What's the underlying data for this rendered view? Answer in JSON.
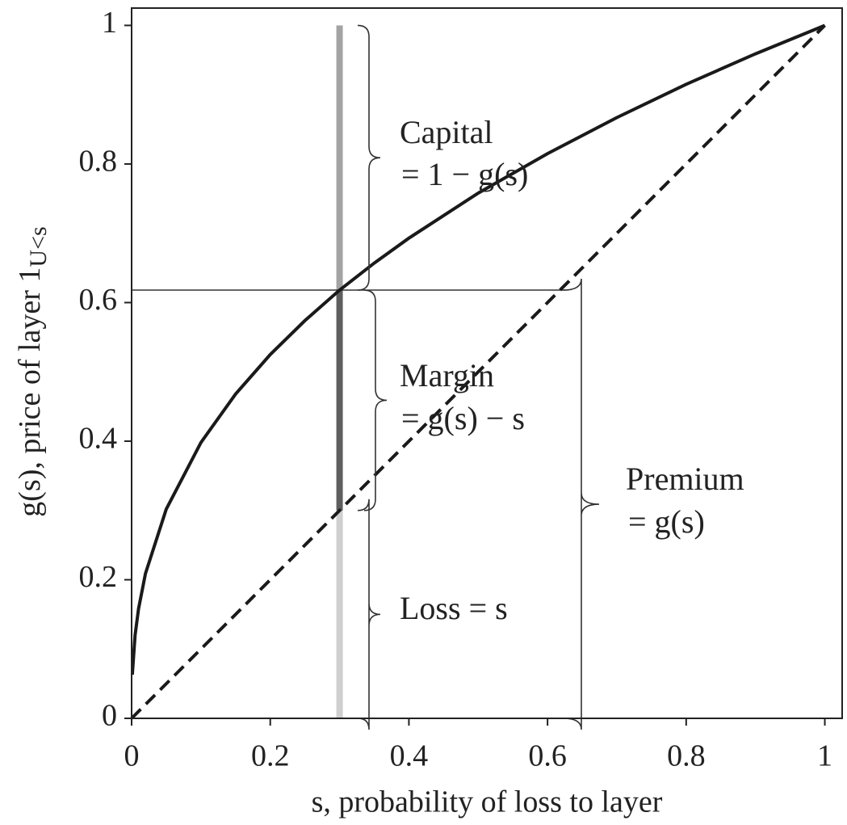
{
  "chart_data": {
    "type": "line",
    "xlabel": "s, probability of loss to layer",
    "ylabel": "g(s), price of layer 1",
    "ylabel_subscript": "U<s",
    "xlim": [
      0,
      1.025
    ],
    "ylim": [
      0,
      1.025
    ],
    "xticks": [
      0,
      0.2,
      0.4,
      0.6,
      0.8,
      1
    ],
    "yticks": [
      0,
      0.2,
      0.4,
      0.6,
      0.8,
      1
    ],
    "series": [
      {
        "color": "#1a1a1a",
        "dash": false,
        "x": [
          0.001,
          0.005,
          0.01,
          0.02,
          0.05,
          0.1,
          0.15,
          0.2,
          0.25,
          0.3,
          0.35,
          0.4,
          0.5,
          0.6,
          0.7,
          0.8,
          0.9,
          1
        ],
        "values": [
          0.063,
          0.12,
          0.158,
          0.209,
          0.302,
          0.398,
          0.468,
          0.525,
          0.574,
          0.618,
          0.657,
          0.693,
          0.758,
          0.815,
          0.867,
          0.915,
          0.959,
          1
        ]
      },
      {
        "color": "#1a1a1a",
        "dash": true,
        "x": [
          0,
          1
        ],
        "values": [
          0,
          1
        ]
      }
    ],
    "stack": {
      "x": 0.3,
      "segments": [
        {
          "value": 0.3,
          "color": "#cfcfcf"
        },
        {
          "value": 0.318,
          "color": "#5e5e5e"
        },
        {
          "value": 0.382,
          "color": "#a3a3a3"
        }
      ]
    },
    "hline": 0.618,
    "annotations": [
      "Capital",
      "= 1 − g(s)",
      "Margin",
      "= g(s) − s",
      "Premium",
      "= g(s)",
      "Loss = s"
    ]
  }
}
